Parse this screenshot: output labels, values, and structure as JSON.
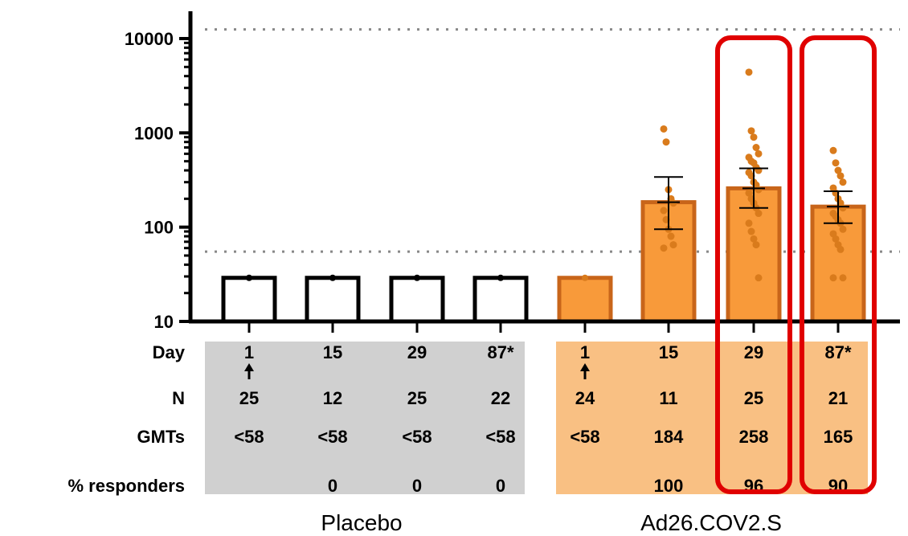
{
  "chart_data": {
    "type": "bar",
    "yscale": "log",
    "ylim": [
      10,
      10000
    ],
    "yticks": [
      10,
      100,
      1000,
      10000
    ],
    "ytick_labels": [
      "10",
      "100",
      "1000",
      "10000"
    ],
    "threshold_lines": [
      55,
      12500
    ],
    "row_labels": {
      "day": "Day",
      "n": "N",
      "gmt": "GMTs",
      "responders": "% responders"
    },
    "groups": [
      {
        "label": "Placebo",
        "color": "#d0d0d0"
      },
      {
        "label": "Ad26.COV2.S",
        "color": "#f9c083"
      }
    ],
    "bars": [
      {
        "group": 0,
        "day": "1",
        "dose_marker": true,
        "n": "25",
        "gmt": "<58",
        "responders": "",
        "value": 29,
        "ci": null,
        "points": []
      },
      {
        "group": 0,
        "day": "15",
        "dose_marker": false,
        "n": "12",
        "gmt": "<58",
        "responders": "0",
        "value": 29,
        "ci": null,
        "points": []
      },
      {
        "group": 0,
        "day": "29",
        "dose_marker": false,
        "n": "25",
        "gmt": "<58",
        "responders": "0",
        "value": 29,
        "ci": null,
        "points": []
      },
      {
        "group": 0,
        "day": "87*",
        "dose_marker": false,
        "n": "22",
        "gmt": "<58",
        "responders": "0",
        "value": 29,
        "ci": null,
        "points": []
      },
      {
        "group": 1,
        "day": "1",
        "dose_marker": true,
        "n": "24",
        "gmt": "<58",
        "responders": "",
        "value": 29,
        "ci": null,
        "points": []
      },
      {
        "group": 1,
        "day": "15",
        "dose_marker": false,
        "n": "11",
        "gmt": "184",
        "responders": "100",
        "value": 184,
        "ci": [
          95,
          340
        ],
        "points": [
          1100,
          800,
          250,
          200,
          180,
          150,
          120,
          95,
          80,
          65,
          60
        ]
      },
      {
        "group": 1,
        "day": "29",
        "dose_marker": false,
        "n": "25",
        "gmt": "258",
        "responders": "96",
        "value": 258,
        "ci": [
          160,
          420
        ],
        "points": [
          4400,
          1050,
          900,
          700,
          600,
          550,
          500,
          480,
          430,
          400,
          380,
          350,
          300,
          280,
          250,
          230,
          200,
          180,
          160,
          140,
          110,
          90,
          75,
          65,
          29
        ]
      },
      {
        "group": 1,
        "day": "87*",
        "dose_marker": false,
        "n": "21",
        "gmt": "165",
        "responders": "90",
        "value": 165,
        "ci": [
          110,
          240
        ],
        "points": [
          650,
          480,
          400,
          350,
          300,
          260,
          230,
          200,
          180,
          160,
          140,
          130,
          120,
          110,
          95,
          85,
          75,
          65,
          58,
          29,
          29
        ]
      }
    ],
    "highlighted_bars": [
      6,
      7
    ],
    "colors": {
      "placebo_bar_fill": "#ffffff",
      "placebo_bar_stroke": "#000000",
      "vaccine_bar_fill": "#f89a3a",
      "vaccine_bar_stroke": "#c8651a",
      "dot": "#d97b1c",
      "highlight": "#e00000",
      "threshold": "#888888"
    }
  }
}
